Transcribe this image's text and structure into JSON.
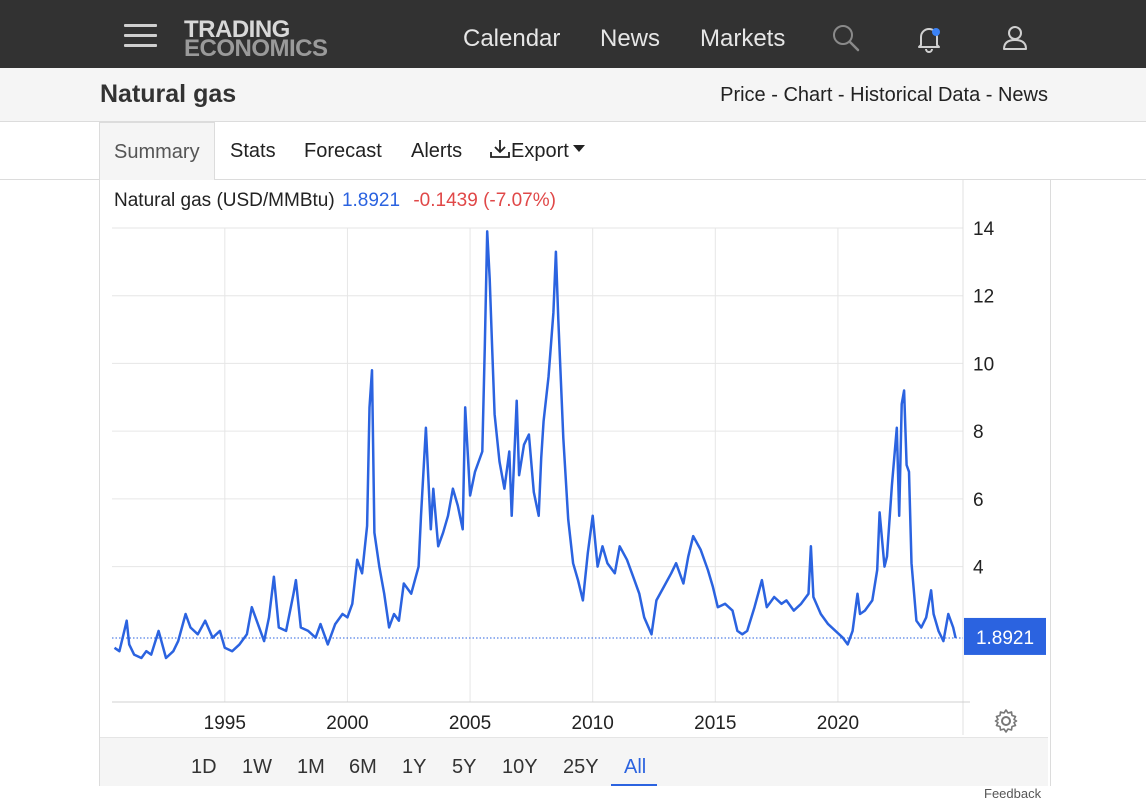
{
  "nav": {
    "logo_line1": "TRADING",
    "logo_line2": "ECONOMICS",
    "links": [
      "Calendar",
      "News",
      "Markets"
    ],
    "icons": [
      "menu-icon",
      "search-icon",
      "bell-icon",
      "user-icon"
    ]
  },
  "header": {
    "title": "Natural gas",
    "breadcrumb": [
      "Price",
      "Chart",
      "Historical Data",
      "News"
    ],
    "separator": " - "
  },
  "tabs": [
    "Summary",
    "Stats",
    "Forecast",
    "Alerts",
    "Export"
  ],
  "legend": {
    "name": "Natural gas (USD/MMBtu)",
    "price": "1.8921",
    "change": "-0.1439 (-7.07%)"
  },
  "ranges": [
    "1D",
    "1W",
    "1M",
    "6M",
    "1Y",
    "5Y",
    "10Y",
    "25Y",
    "All"
  ],
  "active_range": "All",
  "feedback": "Feedback",
  "colors": {
    "series": "#2b63e0",
    "change_negative": "#e04848",
    "navbar": "#323232"
  },
  "chart_data": {
    "type": "line",
    "title": "",
    "xlabel": "",
    "ylabel": "",
    "x_ticks": [
      1995,
      2000,
      2005,
      2010,
      2015,
      2020
    ],
    "y_ticks": [
      4,
      6,
      8,
      10,
      12,
      14
    ],
    "xlim": [
      1990.4,
      2025.1
    ],
    "ylim": [
      0,
      14
    ],
    "last_value": 1.8921,
    "last_value_label": "1.8921",
    "grid": true,
    "series": [
      {
        "values": [
          [
            1990.5,
            1.6
          ],
          [
            1990.7,
            1.5
          ],
          [
            1990.9,
            2.1
          ],
          [
            1991.0,
            2.4
          ],
          [
            1991.1,
            1.7
          ],
          [
            1991.3,
            1.4
          ],
          [
            1991.6,
            1.3
          ],
          [
            1991.8,
            1.5
          ],
          [
            1992.0,
            1.4
          ],
          [
            1992.3,
            2.1
          ],
          [
            1992.6,
            1.3
          ],
          [
            1992.9,
            1.5
          ],
          [
            1993.1,
            1.8
          ],
          [
            1993.4,
            2.6
          ],
          [
            1993.6,
            2.2
          ],
          [
            1993.9,
            2.0
          ],
          [
            1994.2,
            2.4
          ],
          [
            1994.5,
            1.9
          ],
          [
            1994.8,
            2.1
          ],
          [
            1995.0,
            1.6
          ],
          [
            1995.3,
            1.5
          ],
          [
            1995.6,
            1.7
          ],
          [
            1995.9,
            2.0
          ],
          [
            1996.1,
            2.8
          ],
          [
            1996.3,
            2.4
          ],
          [
            1996.6,
            1.8
          ],
          [
            1996.8,
            2.5
          ],
          [
            1997.0,
            3.7
          ],
          [
            1997.2,
            2.2
          ],
          [
            1997.5,
            2.1
          ],
          [
            1997.8,
            3.2
          ],
          [
            1997.9,
            3.6
          ],
          [
            1998.1,
            2.2
          ],
          [
            1998.4,
            2.1
          ],
          [
            1998.7,
            1.9
          ],
          [
            1998.9,
            2.3
          ],
          [
            1999.2,
            1.7
          ],
          [
            1999.5,
            2.3
          ],
          [
            1999.8,
            2.6
          ],
          [
            2000.0,
            2.5
          ],
          [
            2000.2,
            2.9
          ],
          [
            2000.4,
            4.2
          ],
          [
            2000.6,
            3.8
          ],
          [
            2000.8,
            5.2
          ],
          [
            2000.9,
            8.7
          ],
          [
            2001.0,
            9.8
          ],
          [
            2001.1,
            5.0
          ],
          [
            2001.3,
            4.0
          ],
          [
            2001.5,
            3.2
          ],
          [
            2001.7,
            2.2
          ],
          [
            2001.9,
            2.6
          ],
          [
            2002.1,
            2.4
          ],
          [
            2002.3,
            3.5
          ],
          [
            2002.6,
            3.2
          ],
          [
            2002.9,
            4.0
          ],
          [
            2003.0,
            5.5
          ],
          [
            2003.2,
            8.1
          ],
          [
            2003.4,
            5.1
          ],
          [
            2003.5,
            6.3
          ],
          [
            2003.7,
            4.6
          ],
          [
            2003.9,
            5.0
          ],
          [
            2004.1,
            5.5
          ],
          [
            2004.3,
            6.3
          ],
          [
            2004.5,
            5.8
          ],
          [
            2004.7,
            5.1
          ],
          [
            2004.8,
            8.7
          ],
          [
            2005.0,
            6.1
          ],
          [
            2005.2,
            6.8
          ],
          [
            2005.5,
            7.4
          ],
          [
            2005.6,
            10.5
          ],
          [
            2005.7,
            13.9
          ],
          [
            2005.8,
            12.5
          ],
          [
            2005.9,
            10.5
          ],
          [
            2006.0,
            8.5
          ],
          [
            2006.2,
            7.1
          ],
          [
            2006.4,
            6.3
          ],
          [
            2006.6,
            7.4
          ],
          [
            2006.7,
            5.5
          ],
          [
            2006.9,
            8.9
          ],
          [
            2007.0,
            6.7
          ],
          [
            2007.2,
            7.6
          ],
          [
            2007.4,
            7.9
          ],
          [
            2007.6,
            6.2
          ],
          [
            2007.8,
            5.5
          ],
          [
            2007.9,
            7.2
          ],
          [
            2008.0,
            8.3
          ],
          [
            2008.2,
            9.6
          ],
          [
            2008.4,
            11.5
          ],
          [
            2008.5,
            13.3
          ],
          [
            2008.6,
            11.3
          ],
          [
            2008.8,
            7.8
          ],
          [
            2009.0,
            5.4
          ],
          [
            2009.2,
            4.1
          ],
          [
            2009.4,
            3.6
          ],
          [
            2009.6,
            3.0
          ],
          [
            2009.8,
            4.4
          ],
          [
            2010.0,
            5.5
          ],
          [
            2010.2,
            4.0
          ],
          [
            2010.4,
            4.6
          ],
          [
            2010.6,
            4.1
          ],
          [
            2010.9,
            3.8
          ],
          [
            2011.1,
            4.6
          ],
          [
            2011.4,
            4.2
          ],
          [
            2011.7,
            3.6
          ],
          [
            2011.9,
            3.2
          ],
          [
            2012.1,
            2.5
          ],
          [
            2012.4,
            2.0
          ],
          [
            2012.6,
            3.0
          ],
          [
            2012.9,
            3.4
          ],
          [
            2013.2,
            3.8
          ],
          [
            2013.4,
            4.1
          ],
          [
            2013.7,
            3.5
          ],
          [
            2013.9,
            4.3
          ],
          [
            2014.1,
            4.9
          ],
          [
            2014.4,
            4.5
          ],
          [
            2014.7,
            3.9
          ],
          [
            2014.9,
            3.4
          ],
          [
            2015.1,
            2.8
          ],
          [
            2015.4,
            2.9
          ],
          [
            2015.7,
            2.7
          ],
          [
            2015.9,
            2.1
          ],
          [
            2016.1,
            2.0
          ],
          [
            2016.3,
            2.1
          ],
          [
            2016.6,
            2.8
          ],
          [
            2016.9,
            3.6
          ],
          [
            2017.1,
            2.8
          ],
          [
            2017.4,
            3.1
          ],
          [
            2017.7,
            2.9
          ],
          [
            2017.9,
            3.0
          ],
          [
            2018.2,
            2.7
          ],
          [
            2018.5,
            2.9
          ],
          [
            2018.8,
            3.2
          ],
          [
            2018.9,
            4.6
          ],
          [
            2019.0,
            3.1
          ],
          [
            2019.3,
            2.6
          ],
          [
            2019.6,
            2.3
          ],
          [
            2019.9,
            2.1
          ],
          [
            2020.2,
            1.9
          ],
          [
            2020.4,
            1.7
          ],
          [
            2020.6,
            2.1
          ],
          [
            2020.8,
            3.2
          ],
          [
            2020.9,
            2.6
          ],
          [
            2021.1,
            2.7
          ],
          [
            2021.4,
            3.0
          ],
          [
            2021.6,
            3.9
          ],
          [
            2021.7,
            5.6
          ],
          [
            2021.9,
            4.0
          ],
          [
            2022.0,
            4.3
          ],
          [
            2022.2,
            6.4
          ],
          [
            2022.4,
            8.1
          ],
          [
            2022.5,
            5.5
          ],
          [
            2022.6,
            8.8
          ],
          [
            2022.7,
            9.2
          ],
          [
            2022.8,
            7.0
          ],
          [
            2022.9,
            6.8
          ],
          [
            2023.0,
            4.1
          ],
          [
            2023.2,
            2.4
          ],
          [
            2023.4,
            2.2
          ],
          [
            2023.6,
            2.5
          ],
          [
            2023.8,
            3.3
          ],
          [
            2023.9,
            2.6
          ],
          [
            2024.1,
            2.1
          ],
          [
            2024.3,
            1.8
          ],
          [
            2024.5,
            2.6
          ],
          [
            2024.7,
            2.2
          ],
          [
            2024.8,
            1.89
          ]
        ]
      }
    ]
  }
}
